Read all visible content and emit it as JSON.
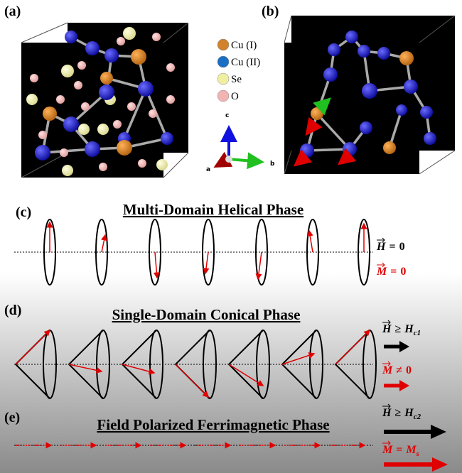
{
  "panels": {
    "a": {
      "label": "(a)"
    },
    "b": {
      "label": "(b)"
    },
    "c": {
      "label": "(c)",
      "title": "Multi-Domain Helical Phase",
      "field": {
        "symbol": "H",
        "relation": "=",
        "value": "0"
      },
      "moment": {
        "symbol": "M",
        "relation": "=",
        "value": "0"
      }
    },
    "d": {
      "label": "(d)",
      "title": "Single-Domain Conical Phase",
      "field": {
        "symbol": "H",
        "relation": "≥",
        "value": "H",
        "subscript": "c1"
      },
      "moment": {
        "symbol": "M",
        "relation": "≠",
        "value": "0"
      }
    },
    "e": {
      "label": "(e)",
      "title": "Field Polarized Ferrimagnetic Phase",
      "field": {
        "symbol": "H",
        "relation": "≥",
        "value": "H",
        "subscript": "c2"
      },
      "moment": {
        "symbol": "M",
        "relation": "=",
        "value": "M",
        "subscript": "s"
      }
    }
  },
  "legend": [
    {
      "label": "Cu (I)",
      "color": "#d0822c"
    },
    {
      "label": "Cu (II)",
      "color": "#1a6fc4"
    },
    {
      "label": "Se",
      "color": "#f0eea0"
    },
    {
      "label": "O",
      "color": "#f2b3b3"
    }
  ],
  "axes": {
    "a": "a",
    "b": "b",
    "c": "c"
  }
}
